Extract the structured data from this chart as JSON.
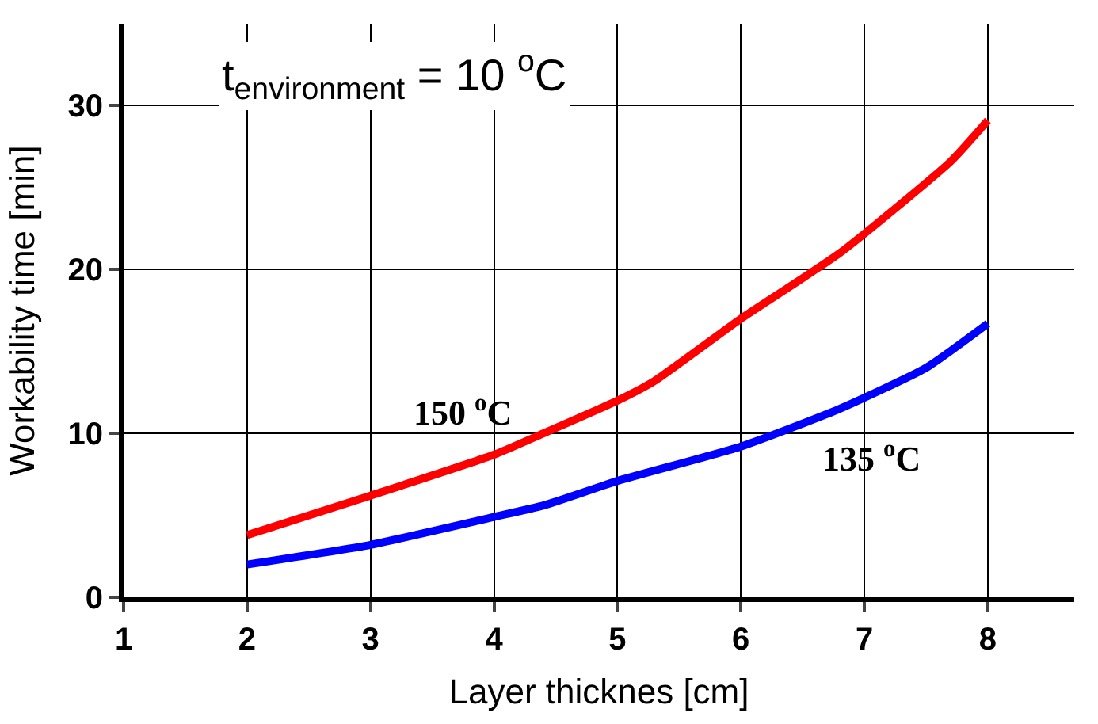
{
  "chart_data": {
    "type": "line",
    "title": "t$_{environment}$ = 10 $^{o}$C",
    "xlabel": "Layer thicknes [cm]",
    "ylabel": "Workability time [min]",
    "series": [
      {
        "name": "150 $^{o}$C",
        "color": "#ff0000",
        "x": [
          2,
          3,
          4,
          4.4,
          5,
          5.3,
          6,
          6.8,
          7.7,
          8
        ],
        "values": [
          3.8,
          6.2,
          8.7,
          10,
          12,
          13.2,
          17,
          21,
          26.6,
          29.1
        ]
      },
      {
        "name": "135 $^{o}$C",
        "color": "#0000ff",
        "x": [
          2,
          3,
          4,
          4.4,
          5,
          6,
          6.8,
          7.5,
          8
        ],
        "values": [
          2.0,
          3.2,
          4.9,
          5.6,
          7.1,
          9.2,
          11.5,
          14,
          16.7
        ]
      }
    ],
    "xlim": [
      1,
      8.7
    ],
    "ylim": [
      0,
      35
    ],
    "xticks": [
      1,
      2,
      3,
      4,
      5,
      6,
      7,
      8
    ],
    "yticks": [
      0,
      10,
      20,
      30
    ],
    "grid": true,
    "legend": false,
    "marker": "none",
    "line_style": "solid"
  }
}
